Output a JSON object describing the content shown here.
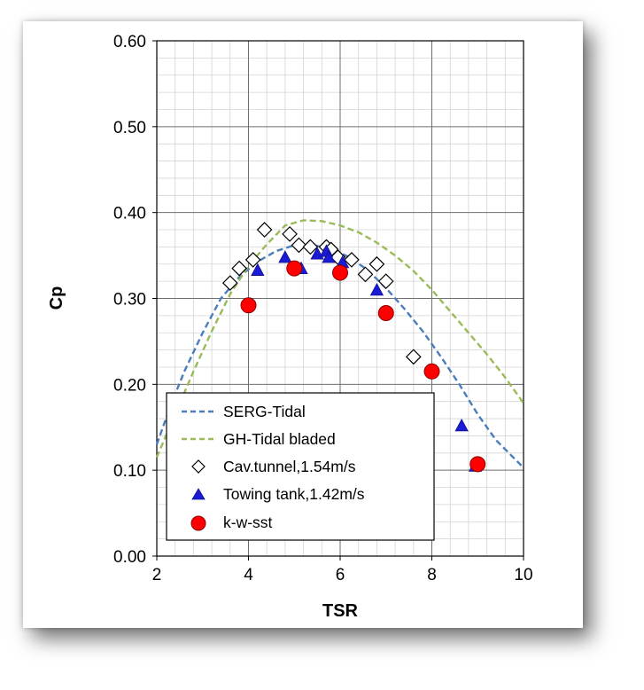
{
  "chart_data": {
    "type": "scatter",
    "xlabel": "TSR",
    "ylabel": "Cp",
    "xlim": [
      2,
      10
    ],
    "ylim": [
      0,
      0.6
    ],
    "x_ticks": [
      "2",
      "4",
      "6",
      "8",
      "10"
    ],
    "y_ticks": [
      "0.00",
      "0.10",
      "0.20",
      "0.30",
      "0.40",
      "0.50",
      "0.60"
    ],
    "grid": true,
    "minor_grid": true,
    "legend_position": "bottom-left",
    "series": [
      {
        "name": "SERG-Tidal",
        "kind": "dashed-line",
        "color": "#4a7ebb",
        "points": [
          [
            2.0,
            0.13
          ],
          [
            2.3,
            0.175
          ],
          [
            2.6,
            0.215
          ],
          [
            3.0,
            0.26
          ],
          [
            3.4,
            0.3
          ],
          [
            3.8,
            0.325
          ],
          [
            4.2,
            0.343
          ],
          [
            4.6,
            0.355
          ],
          [
            5.0,
            0.362
          ],
          [
            5.4,
            0.362
          ],
          [
            5.8,
            0.358
          ],
          [
            6.2,
            0.348
          ],
          [
            6.6,
            0.333
          ],
          [
            7.0,
            0.312
          ],
          [
            7.4,
            0.288
          ],
          [
            7.8,
            0.262
          ],
          [
            8.2,
            0.232
          ],
          [
            8.6,
            0.2
          ],
          [
            9.0,
            0.165
          ],
          [
            9.4,
            0.135
          ],
          [
            10.0,
            0.103
          ]
        ]
      },
      {
        "name": "GH-Tidal bladed",
        "kind": "dashed-line",
        "color": "#9bbb59",
        "points": [
          [
            2.0,
            0.115
          ],
          [
            2.4,
            0.165
          ],
          [
            2.8,
            0.215
          ],
          [
            3.2,
            0.262
          ],
          [
            3.6,
            0.305
          ],
          [
            4.0,
            0.338
          ],
          [
            4.4,
            0.363
          ],
          [
            4.8,
            0.385
          ],
          [
            5.2,
            0.391
          ],
          [
            5.6,
            0.39
          ],
          [
            6.0,
            0.385
          ],
          [
            6.4,
            0.377
          ],
          [
            6.8,
            0.365
          ],
          [
            7.2,
            0.35
          ],
          [
            7.6,
            0.332
          ],
          [
            8.0,
            0.31
          ],
          [
            8.4,
            0.285
          ],
          [
            8.8,
            0.26
          ],
          [
            9.2,
            0.235
          ],
          [
            9.6,
            0.208
          ],
          [
            10.0,
            0.178
          ]
        ]
      },
      {
        "name": "Cav.tunnel,1.54m/s",
        "kind": "diamond",
        "color": "#000000",
        "points": [
          [
            3.6,
            0.318
          ],
          [
            3.8,
            0.335
          ],
          [
            4.1,
            0.345
          ],
          [
            4.35,
            0.38
          ],
          [
            4.9,
            0.375
          ],
          [
            5.1,
            0.362
          ],
          [
            5.35,
            0.36
          ],
          [
            5.7,
            0.36
          ],
          [
            5.8,
            0.357
          ],
          [
            5.95,
            0.348
          ],
          [
            6.25,
            0.345
          ],
          [
            6.55,
            0.328
          ],
          [
            6.8,
            0.34
          ],
          [
            7.0,
            0.32
          ],
          [
            7.6,
            0.232
          ]
        ]
      },
      {
        "name": "Towing tank,1.42m/s",
        "kind": "triangle",
        "color": "#1b1bd6",
        "points": [
          [
            4.2,
            0.333
          ],
          [
            4.8,
            0.348
          ],
          [
            5.15,
            0.335
          ],
          [
            5.5,
            0.352
          ],
          [
            5.7,
            0.355
          ],
          [
            5.75,
            0.348
          ],
          [
            6.05,
            0.342
          ],
          [
            6.8,
            0.31
          ],
          [
            8.65,
            0.152
          ],
          [
            8.95,
            0.105
          ]
        ]
      },
      {
        "name": "k-w-sst",
        "kind": "circle",
        "color": "#ff0000",
        "points": [
          [
            4.0,
            0.292
          ],
          [
            5.0,
            0.335
          ],
          [
            6.0,
            0.33
          ],
          [
            7.0,
            0.283
          ],
          [
            8.0,
            0.215
          ],
          [
            9.0,
            0.107
          ]
        ]
      }
    ]
  }
}
